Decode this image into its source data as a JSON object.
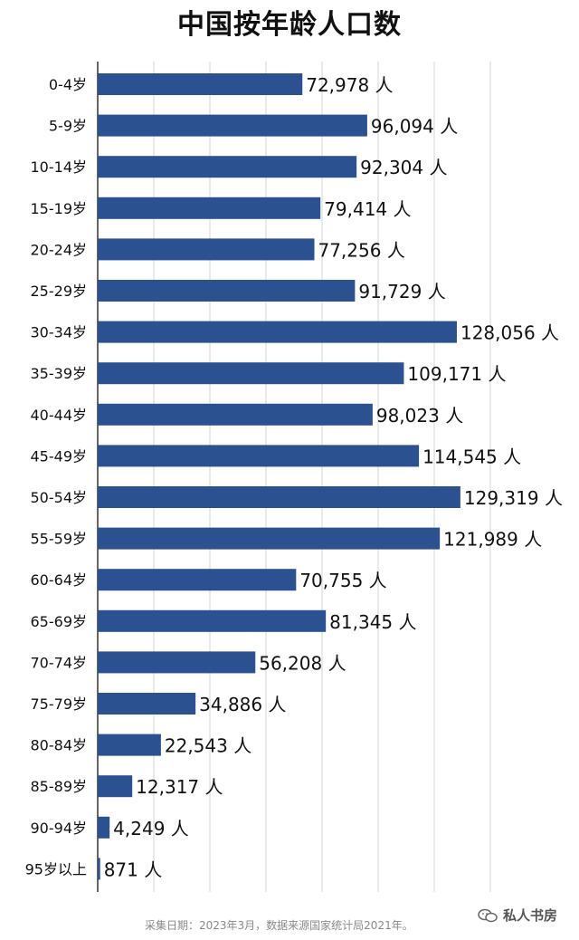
{
  "chart_data": {
    "type": "bar",
    "orientation": "horizontal",
    "title": "中国按年龄人口数",
    "categories": [
      "0-4岁",
      "5-9岁",
      "10-14岁",
      "15-19岁",
      "20-24岁",
      "25-29岁",
      "30-34岁",
      "35-39岁",
      "40-44岁",
      "45-49岁",
      "50-54岁",
      "55-59岁",
      "60-64岁",
      "65-69岁",
      "70-74岁",
      "75-79岁",
      "80-84岁",
      "85-89岁",
      "90-94岁",
      "95岁以上"
    ],
    "values": [
      72978,
      96094,
      92304,
      79414,
      77256,
      91729,
      128056,
      109171,
      98023,
      114545,
      129319,
      121989,
      70755,
      81345,
      56208,
      34886,
      22543,
      12317,
      4249,
      871
    ],
    "value_labels": [
      "72,978 人",
      "96,094 人",
      "92,304 人",
      "79,414 人",
      "77,256 人",
      "91,729 人",
      "128,056 人",
      "109,171 人",
      "98,023 人",
      "114,545 人",
      "129,319 人",
      "121,989 人",
      "70,755 人",
      "81,345 人",
      "56,208 人",
      "34,886 人",
      "22,543 人",
      "12,317 人",
      "4,249 人",
      "871 人"
    ],
    "xlim": [
      0,
      140000
    ],
    "grid": true,
    "bar_color": "#2c5190",
    "xlabel": "",
    "ylabel": ""
  },
  "footer": {
    "source": "采集日期：2023年3月，数据来源国家统计局2021年。",
    "watermark": "私人书房"
  }
}
